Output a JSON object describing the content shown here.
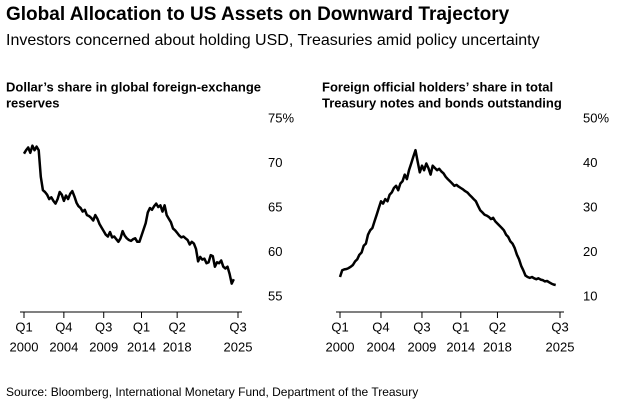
{
  "title": "Global Allocation to US Assets on Downward Trajectory",
  "subtitle": "Investors concerned about holding USD, Treasuries amid policy uncertainty",
  "source": "Source: Bloomberg, International Monetary Fund, Department of the Treasury",
  "chart_data": [
    {
      "type": "line",
      "title": [
        "Dollar’s share in global foreign-exchange",
        "reserves"
      ],
      "color": "#000000",
      "xlim": [
        "2000 Q1",
        "2025 Q3"
      ],
      "xticks": [
        {
          "value": "2000 Q1",
          "label": [
            "Q1",
            "2000"
          ]
        },
        {
          "value": "2004 Q4",
          "label": [
            "Q4",
            "2004"
          ]
        },
        {
          "value": "2009 Q3",
          "label": [
            "Q3",
            "2009"
          ]
        },
        {
          "value": "2014 Q1",
          "label": [
            "Q1",
            "2014"
          ]
        },
        {
          "value": "2018 Q2",
          "label": [
            "Q2",
            "2018"
          ]
        },
        {
          "value": "2025 Q3",
          "label": [
            "Q3",
            "2025"
          ]
        }
      ],
      "ylim": [
        55,
        75
      ],
      "yticks": [
        {
          "value": 75,
          "label": "75%"
        },
        70,
        65,
        60,
        55
      ],
      "x": [
        "2000 Q1",
        "2000 Q2",
        "2000 Q3",
        "2000 Q4",
        "2001 Q1",
        "2001 Q2",
        "2001 Q3",
        "2001 Q4",
        "2002 Q1",
        "2002 Q2",
        "2002 Q3",
        "2002 Q4",
        "2003 Q1",
        "2003 Q2",
        "2003 Q3",
        "2003 Q4",
        "2004 Q1",
        "2004 Q2",
        "2004 Q3",
        "2004 Q4",
        "2005 Q1",
        "2005 Q2",
        "2005 Q3",
        "2005 Q4",
        "2006 Q1",
        "2006 Q2",
        "2006 Q3",
        "2006 Q4",
        "2007 Q1",
        "2007 Q2",
        "2007 Q3",
        "2007 Q4",
        "2008 Q1",
        "2008 Q2",
        "2008 Q3",
        "2008 Q4",
        "2009 Q1",
        "2009 Q2",
        "2009 Q3",
        "2009 Q4",
        "2010 Q1",
        "2010 Q2",
        "2010 Q3",
        "2010 Q4",
        "2011 Q1",
        "2011 Q2",
        "2011 Q3",
        "2011 Q4",
        "2012 Q1",
        "2012 Q2",
        "2012 Q3",
        "2012 Q4",
        "2013 Q1",
        "2013 Q2",
        "2013 Q3",
        "2013 Q4",
        "2014 Q1",
        "2014 Q2",
        "2014 Q3",
        "2014 Q4",
        "2015 Q1",
        "2015 Q2",
        "2015 Q3",
        "2015 Q4",
        "2016 Q1",
        "2016 Q2",
        "2016 Q3",
        "2016 Q4",
        "2017 Q1",
        "2017 Q2",
        "2017 Q3",
        "2017 Q4",
        "2018 Q1",
        "2018 Q2",
        "2018 Q3",
        "2018 Q4",
        "2019 Q1",
        "2019 Q2",
        "2019 Q3",
        "2019 Q4",
        "2020 Q1",
        "2020 Q2",
        "2020 Q3",
        "2020 Q4",
        "2021 Q1",
        "2021 Q2",
        "2021 Q3",
        "2021 Q4",
        "2022 Q1",
        "2022 Q2",
        "2022 Q3",
        "2022 Q4",
        "2023 Q1",
        "2023 Q2",
        "2023 Q3",
        "2023 Q4",
        "2024 Q1",
        "2024 Q2",
        "2024 Q3",
        "2024 Q4",
        "2025 Q1"
      ],
      "values": [
        71.1,
        71.5,
        71.8,
        71.2,
        72.0,
        71.5,
        71.9,
        71.5,
        68.5,
        67.0,
        66.8,
        66.5,
        66.0,
        66.2,
        65.8,
        65.5,
        66.0,
        66.8,
        66.5,
        65.8,
        66.4,
        66.0,
        66.6,
        66.9,
        66.3,
        65.6,
        65.2,
        65.0,
        64.6,
        64.8,
        64.2,
        64.1,
        63.9,
        63.6,
        64.2,
        63.8,
        63.2,
        62.8,
        62.4,
        62.0,
        61.8,
        62.3,
        61.7,
        61.8,
        61.5,
        61.2,
        61.6,
        62.4,
        61.9,
        61.6,
        61.4,
        61.3,
        61.5,
        61.6,
        61.2,
        61.2,
        61.9,
        62.6,
        63.3,
        64.5,
        65.0,
        64.8,
        65.2,
        65.5,
        65.1,
        65.3,
        64.6,
        65.3,
        64.2,
        63.8,
        63.4,
        62.7,
        62.5,
        62.2,
        61.9,
        61.7,
        61.8,
        61.6,
        61.4,
        60.9,
        61.2,
        61.0,
        60.4,
        59.0,
        59.5,
        59.2,
        59.3,
        58.8,
        58.9,
        59.7,
        59.6,
        58.4,
        58.9,
        58.8,
        59.1,
        58.4,
        58.2,
        58.4,
        57.6,
        56.5,
        57.0
      ]
    },
    {
      "type": "line",
      "title": [
        "Foreign official holders’ share in total",
        "Treasury notes and bonds outstanding"
      ],
      "color": "#000000",
      "xlim": [
        "2000 Q1",
        "2025 Q3"
      ],
      "xticks": [
        {
          "value": "2000 Q1",
          "label": [
            "Q1",
            "2000"
          ]
        },
        {
          "value": "2004 Q4",
          "label": [
            "Q4",
            "2004"
          ]
        },
        {
          "value": "2009 Q3",
          "label": [
            "Q3",
            "2009"
          ]
        },
        {
          "value": "2014 Q1",
          "label": [
            "Q1",
            "2014"
          ]
        },
        {
          "value": "2018 Q2",
          "label": [
            "Q2",
            "2018"
          ]
        },
        {
          "value": "2025 Q3",
          "label": [
            "Q3",
            "2025"
          ]
        }
      ],
      "ylim": [
        10,
        50
      ],
      "yticks": [
        {
          "value": 50,
          "label": "50%"
        },
        40,
        30,
        20,
        10
      ],
      "x": [
        "2000 Q1",
        "2000 Q2",
        "2000 Q3",
        "2000 Q4",
        "2001 Q1",
        "2001 Q2",
        "2001 Q3",
        "2001 Q4",
        "2002 Q1",
        "2002 Q2",
        "2002 Q3",
        "2002 Q4",
        "2003 Q1",
        "2003 Q2",
        "2003 Q3",
        "2003 Q4",
        "2004 Q1",
        "2004 Q2",
        "2004 Q3",
        "2004 Q4",
        "2005 Q1",
        "2005 Q2",
        "2005 Q3",
        "2005 Q4",
        "2006 Q1",
        "2006 Q2",
        "2006 Q3",
        "2006 Q4",
        "2007 Q1",
        "2007 Q2",
        "2007 Q3",
        "2007 Q4",
        "2008 Q1",
        "2008 Q2",
        "2008 Q3",
        "2008 Q4",
        "2009 Q1",
        "2009 Q2",
        "2009 Q3",
        "2009 Q4",
        "2010 Q1",
        "2010 Q2",
        "2010 Q3",
        "2010 Q4",
        "2011 Q1",
        "2011 Q2",
        "2011 Q3",
        "2011 Q4",
        "2012 Q1",
        "2012 Q2",
        "2012 Q3",
        "2012 Q4",
        "2013 Q1",
        "2013 Q2",
        "2013 Q3",
        "2013 Q4",
        "2014 Q1",
        "2014 Q2",
        "2014 Q3",
        "2014 Q4",
        "2015 Q1",
        "2015 Q2",
        "2015 Q3",
        "2015 Q4",
        "2016 Q1",
        "2016 Q2",
        "2016 Q3",
        "2016 Q4",
        "2017 Q1",
        "2017 Q2",
        "2017 Q3",
        "2017 Q4",
        "2018 Q1",
        "2018 Q2",
        "2018 Q3",
        "2018 Q4",
        "2019 Q1",
        "2019 Q2",
        "2019 Q3",
        "2019 Q4",
        "2020 Q1",
        "2020 Q2",
        "2020 Q3",
        "2020 Q4",
        "2021 Q1",
        "2021 Q2",
        "2021 Q3",
        "2021 Q4",
        "2022 Q1",
        "2022 Q2",
        "2022 Q3",
        "2022 Q4",
        "2023 Q1",
        "2023 Q2",
        "2023 Q3",
        "2023 Q4",
        "2024 Q1",
        "2024 Q2",
        "2024 Q3",
        "2024 Q4",
        "2025 Q1"
      ],
      "values": [
        14.5,
        16.0,
        16.2,
        16.3,
        16.5,
        16.8,
        17.2,
        18.0,
        18.5,
        19.5,
        20.0,
        21.5,
        22.0,
        24.0,
        25.0,
        25.5,
        27.0,
        28.5,
        30.0,
        31.5,
        31.0,
        32.0,
        31.5,
        33.0,
        33.5,
        34.5,
        35.0,
        34.0,
        35.5,
        36.0,
        37.5,
        36.5,
        38.5,
        40.0,
        41.5,
        43.0,
        40.5,
        38.0,
        39.5,
        38.5,
        40.0,
        39.0,
        37.5,
        39.5,
        39.0,
        38.5,
        38.8,
        38.2,
        37.8,
        37.0,
        36.5,
        36.0,
        35.5,
        35.0,
        35.2,
        34.8,
        34.5,
        34.2,
        33.8,
        33.5,
        33.0,
        32.5,
        32.0,
        31.5,
        30.5,
        29.5,
        29.0,
        28.5,
        28.3,
        28.0,
        27.5,
        27.8,
        27.0,
        26.5,
        26.0,
        25.5,
        25.0,
        24.0,
        23.5,
        22.5,
        22.0,
        21.0,
        19.5,
        18.5,
        17.0,
        16.0,
        14.8,
        14.5,
        14.3,
        14.5,
        14.2,
        14.0,
        14.2,
        13.9,
        13.8,
        13.5,
        13.6,
        13.3,
        13.0,
        12.8,
        12.7
      ]
    }
  ]
}
